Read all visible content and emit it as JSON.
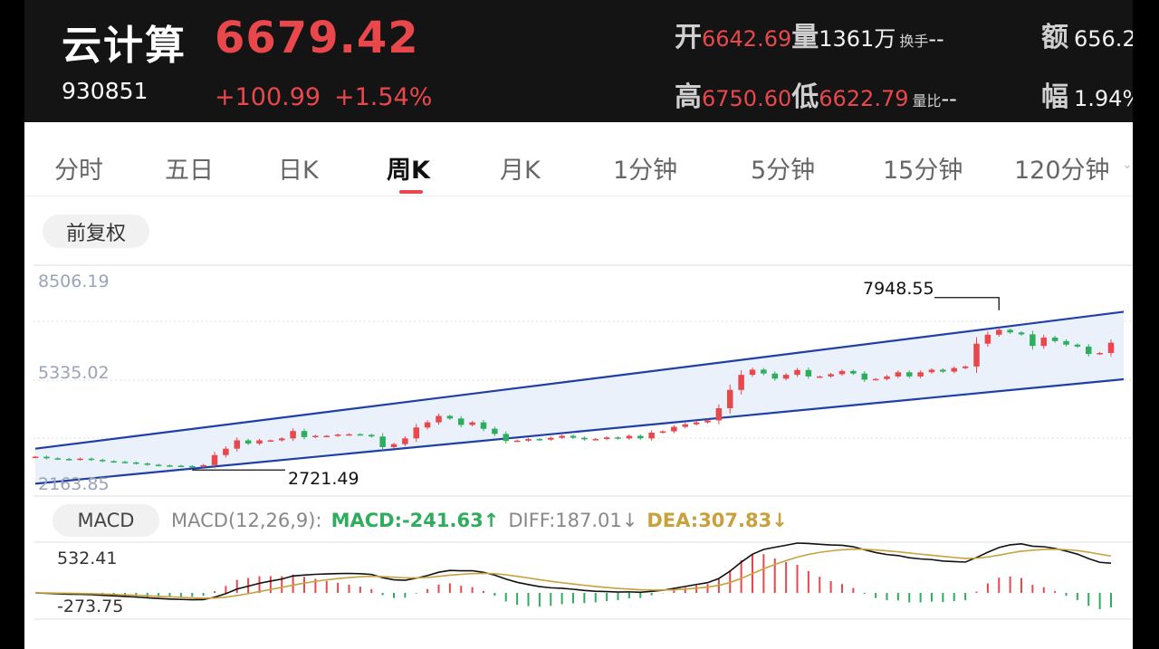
{
  "header": {
    "name": "云计算",
    "price": "6679.42",
    "code": "930851",
    "change": "+100.99",
    "change_pct": "+1.54%",
    "open_label": "开",
    "open_value": "6642.69",
    "volume_label": "量",
    "volume_value": "1361万",
    "turnover_label": "换手",
    "turnover_value": "--",
    "amount_label": "额",
    "amount_value": "656.2",
    "high_label": "高",
    "high_value": "6750.60",
    "low_label": "低",
    "low_value": "6622.79",
    "volratio_label": "量比",
    "volratio_value": "--",
    "amplitude_label": "幅",
    "amplitude_value": "1.94%"
  },
  "tabs": [
    "分时",
    "五日",
    "日K",
    "周K",
    "月K",
    "1分钟",
    "5分钟",
    "15分钟",
    "120分钟"
  ],
  "active_tab": "周K",
  "adjust_button": "前复权",
  "kline": {
    "axis_top": "8506.19",
    "axis_mid": "5335.02",
    "axis_bottom": "2163.85",
    "max_label": "7948.55",
    "min_label": "2721.49"
  },
  "macd": {
    "button": "MACD",
    "params": "MACD(12,26,9):",
    "macd": "MACD:-241.63↑",
    "diff": "DIFF:187.01↓",
    "dea": "DEA:307.83↓",
    "axis_top": "532.41",
    "axis_bottom": "-273.75"
  },
  "colors": {
    "up": "#e8474b",
    "down": "#2eae5c",
    "channel": "#1f3fa8",
    "dea": "#c8a13c"
  },
  "chart_data": {
    "type": "candlestick",
    "weekly_close": [
      3050,
      3000,
      2980,
      2960,
      2990,
      2950,
      2910,
      2890,
      2870,
      2840,
      2800,
      2780,
      2770,
      2760,
      2750,
      2790,
      3100,
      3300,
      3560,
      3460,
      3560,
      3560,
      3620,
      3850,
      3660,
      3700,
      3700,
      3740,
      3750,
      3730,
      3680,
      3350,
      3440,
      3620,
      3960,
      4120,
      4320,
      4240,
      4040,
      4120,
      3920,
      3760,
      3540,
      3550,
      3600,
      3580,
      3640,
      3700,
      3640,
      3590,
      3600,
      3650,
      3620,
      3700,
      3620,
      3800,
      3840,
      3980,
      4060,
      4120,
      4180,
      4560,
      5130,
      5600,
      5760,
      5640,
      5480,
      5600,
      5750,
      5550,
      5550,
      5620,
      5720,
      5640,
      5450,
      5470,
      5550,
      5680,
      5550,
      5680,
      5760,
      5700,
      5810,
      5860,
      6570,
      6850,
      7000,
      6920,
      6860,
      6500,
      6760,
      6650,
      6540,
      6480,
      6250,
      6280,
      6600
    ],
    "y_range": [
      2163.85,
      8506.19
    ],
    "channel_upper": [
      [
        0,
        3300
      ],
      [
        96,
        7450
      ]
    ],
    "channel_lower": [
      [
        0,
        2210
      ],
      [
        96,
        5350
      ]
    ],
    "max": 7948.55,
    "min": 2721.49
  }
}
